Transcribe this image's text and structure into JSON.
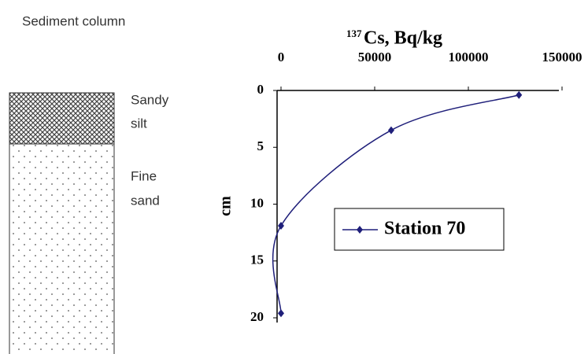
{
  "chart_data": {
    "type": "line",
    "title_superscript": "137",
    "title": "Cs, Bq/kg",
    "ylabel": "cm",
    "xlim": [
      0,
      150000
    ],
    "xticks": [
      0,
      50000,
      100000,
      150000
    ],
    "ylim": [
      0,
      20
    ],
    "yticks": [
      0,
      5,
      10,
      15,
      20
    ],
    "y_inverted": true,
    "legend": "inside",
    "series": [
      {
        "name": "Station 70",
        "color": "#1f1f7a",
        "x": [
          127000,
          58800,
          0,
          0
        ],
        "values": [
          0.4,
          3.5,
          11.9,
          19.6
        ]
      }
    ]
  },
  "column": {
    "title": "Sediment column",
    "layers": [
      {
        "label_lines": [
          "Sandy",
          "silt"
        ]
      },
      {
        "label_lines": [
          "Fine",
          "sand"
        ]
      }
    ]
  }
}
